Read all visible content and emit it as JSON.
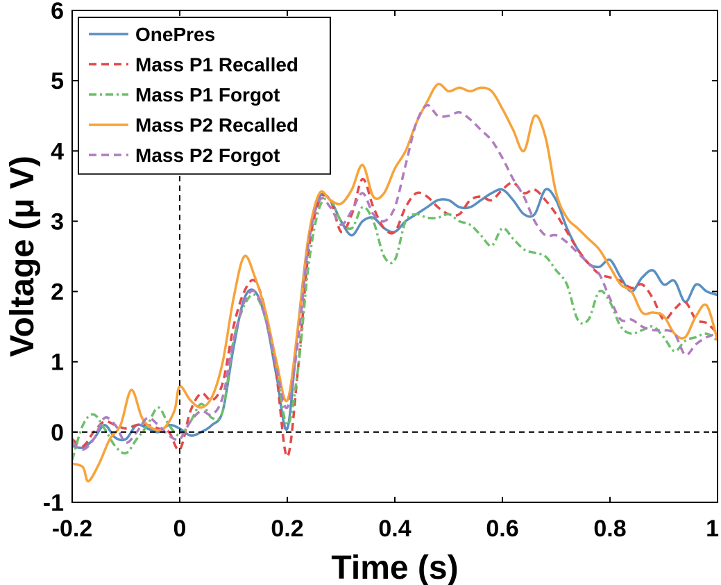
{
  "chart_data": {
    "type": "line",
    "title": "",
    "xlabel": "Time (s)",
    "ylabel": "Voltage (μ V)",
    "xlim": [
      -0.2,
      1.0
    ],
    "ylim": [
      -1,
      6
    ],
    "xticks": [
      "-0.2",
      "0",
      "0.2",
      "0.4",
      "0.6",
      "0.8",
      "1"
    ],
    "yticks": [
      "-1",
      "0",
      "1",
      "2",
      "3",
      "4",
      "5",
      "6"
    ],
    "grid": false,
    "legend_position": "top-left",
    "reference_lines": {
      "x": 0,
      "y": 0
    },
    "series": [
      {
        "name": "OnePres",
        "color": "#5a8fc2",
        "dash": "solid",
        "points": [
          [
            -0.2,
            -0.2
          ],
          [
            -0.18,
            -0.22
          ],
          [
            -0.16,
            -0.1
          ],
          [
            -0.14,
            0.1
          ],
          [
            -0.12,
            -0.08
          ],
          [
            -0.1,
            -0.1
          ],
          [
            -0.08,
            0.1
          ],
          [
            -0.06,
            0.05
          ],
          [
            -0.04,
            0.0
          ],
          [
            -0.02,
            0.1
          ],
          [
            0.0,
            0.05
          ],
          [
            0.02,
            -0.05
          ],
          [
            0.04,
            0.0
          ],
          [
            0.06,
            0.1
          ],
          [
            0.08,
            0.3
          ],
          [
            0.1,
            1.2
          ],
          [
            0.12,
            1.9
          ],
          [
            0.14,
            2.0
          ],
          [
            0.16,
            1.6
          ],
          [
            0.18,
            0.8
          ],
          [
            0.2,
            0.05
          ],
          [
            0.22,
            1.5
          ],
          [
            0.24,
            2.8
          ],
          [
            0.26,
            3.35
          ],
          [
            0.28,
            3.3
          ],
          [
            0.3,
            3.0
          ],
          [
            0.32,
            2.8
          ],
          [
            0.34,
            3.0
          ],
          [
            0.36,
            3.05
          ],
          [
            0.38,
            2.9
          ],
          [
            0.4,
            2.85
          ],
          [
            0.42,
            3.0
          ],
          [
            0.44,
            3.1
          ],
          [
            0.46,
            3.2
          ],
          [
            0.48,
            3.3
          ],
          [
            0.5,
            3.3
          ],
          [
            0.52,
            3.2
          ],
          [
            0.54,
            3.2
          ],
          [
            0.56,
            3.3
          ],
          [
            0.58,
            3.4
          ],
          [
            0.6,
            3.45
          ],
          [
            0.62,
            3.3
          ],
          [
            0.64,
            3.1
          ],
          [
            0.66,
            3.1
          ],
          [
            0.68,
            3.45
          ],
          [
            0.7,
            3.3
          ],
          [
            0.72,
            2.9
          ],
          [
            0.74,
            2.6
          ],
          [
            0.76,
            2.4
          ],
          [
            0.78,
            2.35
          ],
          [
            0.8,
            2.45
          ],
          [
            0.82,
            2.2
          ],
          [
            0.84,
            2.0
          ],
          [
            0.86,
            2.2
          ],
          [
            0.88,
            2.3
          ],
          [
            0.9,
            2.1
          ],
          [
            0.92,
            2.15
          ],
          [
            0.94,
            1.85
          ],
          [
            0.96,
            2.1
          ],
          [
            0.98,
            2.0
          ],
          [
            1.0,
            1.95
          ]
        ]
      },
      {
        "name": "Mass P1 Recalled",
        "color": "#e24a4a",
        "dash": "dashed",
        "points": [
          [
            -0.2,
            -0.1
          ],
          [
            -0.18,
            -0.2
          ],
          [
            -0.16,
            0.0
          ],
          [
            -0.14,
            0.15
          ],
          [
            -0.12,
            0.1
          ],
          [
            -0.1,
            0.05
          ],
          [
            -0.08,
            0.1
          ],
          [
            -0.06,
            0.1
          ],
          [
            -0.04,
            0.05
          ],
          [
            -0.02,
            0.0
          ],
          [
            0.0,
            -0.25
          ],
          [
            0.02,
            0.3
          ],
          [
            0.04,
            0.55
          ],
          [
            0.06,
            0.45
          ],
          [
            0.08,
            0.7
          ],
          [
            0.1,
            1.5
          ],
          [
            0.12,
            2.0
          ],
          [
            0.14,
            2.15
          ],
          [
            0.16,
            1.7
          ],
          [
            0.18,
            0.8
          ],
          [
            0.2,
            -0.35
          ],
          [
            0.22,
            0.9
          ],
          [
            0.24,
            2.6
          ],
          [
            0.26,
            3.3
          ],
          [
            0.28,
            3.3
          ],
          [
            0.3,
            2.85
          ],
          [
            0.32,
            3.1
          ],
          [
            0.34,
            3.6
          ],
          [
            0.36,
            3.2
          ],
          [
            0.38,
            2.9
          ],
          [
            0.4,
            2.85
          ],
          [
            0.42,
            3.2
          ],
          [
            0.44,
            3.4
          ],
          [
            0.46,
            3.35
          ],
          [
            0.48,
            3.2
          ],
          [
            0.5,
            3.1
          ],
          [
            0.52,
            3.1
          ],
          [
            0.54,
            3.3
          ],
          [
            0.56,
            3.35
          ],
          [
            0.58,
            3.3
          ],
          [
            0.6,
            3.45
          ],
          [
            0.62,
            3.55
          ],
          [
            0.64,
            3.4
          ],
          [
            0.66,
            3.45
          ],
          [
            0.68,
            3.3
          ],
          [
            0.7,
            3.1
          ],
          [
            0.72,
            2.85
          ],
          [
            0.74,
            2.6
          ],
          [
            0.76,
            2.4
          ],
          [
            0.78,
            2.25
          ],
          [
            0.8,
            2.2
          ],
          [
            0.82,
            2.15
          ],
          [
            0.84,
            2.05
          ],
          [
            0.86,
            2.1
          ],
          [
            0.88,
            1.9
          ],
          [
            0.9,
            1.6
          ],
          [
            0.92,
            1.75
          ],
          [
            0.94,
            1.85
          ],
          [
            0.96,
            1.6
          ],
          [
            0.98,
            1.55
          ],
          [
            1.0,
            1.4
          ]
        ]
      },
      {
        "name": "Mass P1 Forgot",
        "color": "#6cc06a",
        "dash": "dashdot",
        "points": [
          [
            -0.2,
            -0.4
          ],
          [
            -0.18,
            0.1
          ],
          [
            -0.16,
            0.25
          ],
          [
            -0.14,
            0.05
          ],
          [
            -0.12,
            -0.2
          ],
          [
            -0.1,
            -0.3
          ],
          [
            -0.08,
            -0.1
          ],
          [
            -0.06,
            0.1
          ],
          [
            -0.04,
            0.35
          ],
          [
            -0.02,
            0.1
          ],
          [
            0.0,
            -0.05
          ],
          [
            0.02,
            0.15
          ],
          [
            0.04,
            0.4
          ],
          [
            0.06,
            0.2
          ],
          [
            0.08,
            0.3
          ],
          [
            0.1,
            1.3
          ],
          [
            0.12,
            1.8
          ],
          [
            0.14,
            1.95
          ],
          [
            0.16,
            1.6
          ],
          [
            0.18,
            0.9
          ],
          [
            0.2,
            0.1
          ],
          [
            0.22,
            0.9
          ],
          [
            0.24,
            2.4
          ],
          [
            0.26,
            3.2
          ],
          [
            0.28,
            3.3
          ],
          [
            0.3,
            3.0
          ],
          [
            0.32,
            2.9
          ],
          [
            0.34,
            3.2
          ],
          [
            0.36,
            3.0
          ],
          [
            0.38,
            2.5
          ],
          [
            0.4,
            2.45
          ],
          [
            0.42,
            3.0
          ],
          [
            0.44,
            3.1
          ],
          [
            0.46,
            3.05
          ],
          [
            0.48,
            3.05
          ],
          [
            0.5,
            3.1
          ],
          [
            0.52,
            3.0
          ],
          [
            0.54,
            2.95
          ],
          [
            0.56,
            2.8
          ],
          [
            0.58,
            2.65
          ],
          [
            0.6,
            2.9
          ],
          [
            0.62,
            2.75
          ],
          [
            0.64,
            2.6
          ],
          [
            0.66,
            2.55
          ],
          [
            0.68,
            2.5
          ],
          [
            0.7,
            2.3
          ],
          [
            0.72,
            2.1
          ],
          [
            0.74,
            1.6
          ],
          [
            0.76,
            1.6
          ],
          [
            0.78,
            2.0
          ],
          [
            0.8,
            1.85
          ],
          [
            0.82,
            1.5
          ],
          [
            0.84,
            1.4
          ],
          [
            0.86,
            1.45
          ],
          [
            0.88,
            1.5
          ],
          [
            0.9,
            1.35
          ],
          [
            0.92,
            1.15
          ],
          [
            0.94,
            1.3
          ],
          [
            0.96,
            1.35
          ],
          [
            0.98,
            1.4
          ],
          [
            1.0,
            1.3
          ]
        ]
      },
      {
        "name": "Mass P2 Recalled",
        "color": "#f7a33a",
        "dash": "solid",
        "points": [
          [
            -0.2,
            -0.45
          ],
          [
            -0.18,
            -0.5
          ],
          [
            -0.17,
            -0.7
          ],
          [
            -0.15,
            -0.45
          ],
          [
            -0.13,
            -0.1
          ],
          [
            -0.11,
            0.1
          ],
          [
            -0.09,
            0.6
          ],
          [
            -0.07,
            0.2
          ],
          [
            -0.05,
            0.05
          ],
          [
            -0.03,
            0.05
          ],
          [
            -0.01,
            0.3
          ],
          [
            0.0,
            0.65
          ],
          [
            0.02,
            0.45
          ],
          [
            0.04,
            0.35
          ],
          [
            0.06,
            0.5
          ],
          [
            0.08,
            1.0
          ],
          [
            0.1,
            1.9
          ],
          [
            0.12,
            2.5
          ],
          [
            0.14,
            2.2
          ],
          [
            0.16,
            1.7
          ],
          [
            0.18,
            1.0
          ],
          [
            0.2,
            0.45
          ],
          [
            0.22,
            1.5
          ],
          [
            0.24,
            2.8
          ],
          [
            0.26,
            3.4
          ],
          [
            0.28,
            3.3
          ],
          [
            0.3,
            3.25
          ],
          [
            0.32,
            3.45
          ],
          [
            0.34,
            3.8
          ],
          [
            0.36,
            3.35
          ],
          [
            0.38,
            3.4
          ],
          [
            0.4,
            3.75
          ],
          [
            0.42,
            4.0
          ],
          [
            0.44,
            4.4
          ],
          [
            0.46,
            4.7
          ],
          [
            0.48,
            4.95
          ],
          [
            0.5,
            4.85
          ],
          [
            0.52,
            4.9
          ],
          [
            0.54,
            4.85
          ],
          [
            0.56,
            4.9
          ],
          [
            0.58,
            4.85
          ],
          [
            0.6,
            4.6
          ],
          [
            0.62,
            4.3
          ],
          [
            0.64,
            4.0
          ],
          [
            0.66,
            4.5
          ],
          [
            0.68,
            4.2
          ],
          [
            0.7,
            3.4
          ],
          [
            0.72,
            3.05
          ],
          [
            0.74,
            2.9
          ],
          [
            0.76,
            2.75
          ],
          [
            0.78,
            2.6
          ],
          [
            0.8,
            2.35
          ],
          [
            0.82,
            2.1
          ],
          [
            0.84,
            2.0
          ],
          [
            0.86,
            1.7
          ],
          [
            0.88,
            1.7
          ],
          [
            0.9,
            1.65
          ],
          [
            0.92,
            1.4
          ],
          [
            0.94,
            1.35
          ],
          [
            0.96,
            1.65
          ],
          [
            0.98,
            1.8
          ],
          [
            1.0,
            1.3
          ]
        ]
      },
      {
        "name": "Mass P2 Forgot",
        "color": "#b07cc0",
        "dash": "dashed",
        "points": [
          [
            -0.2,
            -0.15
          ],
          [
            -0.18,
            -0.25
          ],
          [
            -0.16,
            -0.1
          ],
          [
            -0.14,
            0.2
          ],
          [
            -0.12,
            0.1
          ],
          [
            -0.1,
            -0.15
          ],
          [
            -0.08,
            0.0
          ],
          [
            -0.06,
            0.2
          ],
          [
            -0.04,
            0.1
          ],
          [
            -0.02,
            -0.05
          ],
          [
            0.0,
            -0.1
          ],
          [
            0.02,
            0.15
          ],
          [
            0.04,
            0.3
          ],
          [
            0.06,
            0.25
          ],
          [
            0.08,
            0.5
          ],
          [
            0.1,
            1.3
          ],
          [
            0.12,
            1.85
          ],
          [
            0.14,
            2.0
          ],
          [
            0.16,
            1.6
          ],
          [
            0.18,
            0.9
          ],
          [
            0.2,
            0.35
          ],
          [
            0.22,
            1.3
          ],
          [
            0.24,
            2.7
          ],
          [
            0.26,
            3.3
          ],
          [
            0.28,
            3.2
          ],
          [
            0.3,
            2.95
          ],
          [
            0.32,
            3.15
          ],
          [
            0.34,
            3.4
          ],
          [
            0.36,
            3.1
          ],
          [
            0.38,
            3.0
          ],
          [
            0.4,
            3.2
          ],
          [
            0.42,
            3.8
          ],
          [
            0.44,
            4.4
          ],
          [
            0.46,
            4.65
          ],
          [
            0.48,
            4.5
          ],
          [
            0.5,
            4.5
          ],
          [
            0.52,
            4.55
          ],
          [
            0.54,
            4.45
          ],
          [
            0.56,
            4.3
          ],
          [
            0.58,
            4.15
          ],
          [
            0.6,
            3.9
          ],
          [
            0.62,
            3.6
          ],
          [
            0.64,
            3.35
          ],
          [
            0.66,
            3.0
          ],
          [
            0.68,
            2.8
          ],
          [
            0.7,
            2.8
          ],
          [
            0.72,
            2.7
          ],
          [
            0.74,
            2.55
          ],
          [
            0.76,
            2.4
          ],
          [
            0.78,
            2.25
          ],
          [
            0.8,
            1.9
          ],
          [
            0.82,
            1.6
          ],
          [
            0.84,
            1.6
          ],
          [
            0.86,
            1.5
          ],
          [
            0.88,
            1.45
          ],
          [
            0.9,
            1.45
          ],
          [
            0.92,
            1.4
          ],
          [
            0.94,
            1.1
          ],
          [
            0.96,
            1.25
          ],
          [
            0.98,
            1.35
          ],
          [
            1.0,
            1.4
          ]
        ]
      }
    ]
  }
}
